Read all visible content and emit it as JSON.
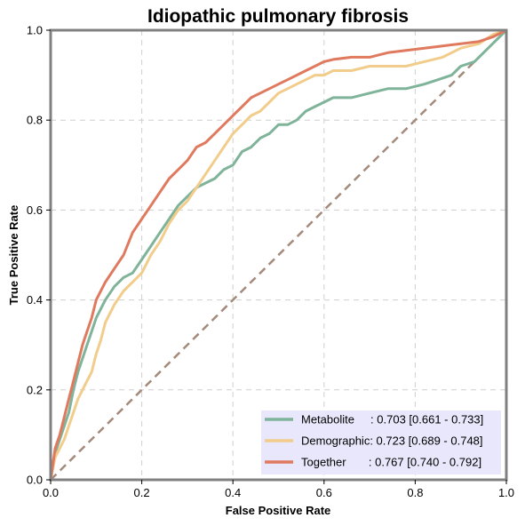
{
  "chart_data": {
    "type": "line",
    "title": "Idiopathic pulmonary fibrosis",
    "xlabel": "False Positive Rate",
    "ylabel": "True Positive Rate",
    "xlim": [
      0,
      1
    ],
    "ylim": [
      0,
      1
    ],
    "x_ticks": [
      "0.0",
      "0.2",
      "0.4",
      "0.6",
      "0.8",
      "1.0"
    ],
    "y_ticks": [
      "0.0",
      "0.2",
      "0.4",
      "0.6",
      "0.8",
      "1.0"
    ],
    "grid": true,
    "legend_position": "lower-right",
    "series": [
      {
        "name": "Metabolite",
        "legend_label": "Metabolite     : 0.703 [0.661 - 0.733]",
        "color": "#7fb39a",
        "points": [
          [
            0,
            0
          ],
          [
            0.01,
            0.06
          ],
          [
            0.02,
            0.09
          ],
          [
            0.03,
            0.12
          ],
          [
            0.04,
            0.15
          ],
          [
            0.05,
            0.2
          ],
          [
            0.06,
            0.24
          ],
          [
            0.07,
            0.27
          ],
          [
            0.08,
            0.3
          ],
          [
            0.09,
            0.33
          ],
          [
            0.1,
            0.36
          ],
          [
            0.12,
            0.4
          ],
          [
            0.14,
            0.43
          ],
          [
            0.16,
            0.45
          ],
          [
            0.18,
            0.46
          ],
          [
            0.2,
            0.49
          ],
          [
            0.22,
            0.52
          ],
          [
            0.24,
            0.55
          ],
          [
            0.26,
            0.58
          ],
          [
            0.28,
            0.61
          ],
          [
            0.3,
            0.63
          ],
          [
            0.32,
            0.65
          ],
          [
            0.34,
            0.66
          ],
          [
            0.36,
            0.67
          ],
          [
            0.38,
            0.69
          ],
          [
            0.4,
            0.7
          ],
          [
            0.42,
            0.73
          ],
          [
            0.44,
            0.74
          ],
          [
            0.46,
            0.76
          ],
          [
            0.48,
            0.77
          ],
          [
            0.5,
            0.79
          ],
          [
            0.52,
            0.79
          ],
          [
            0.54,
            0.8
          ],
          [
            0.56,
            0.82
          ],
          [
            0.58,
            0.83
          ],
          [
            0.6,
            0.84
          ],
          [
            0.62,
            0.85
          ],
          [
            0.66,
            0.85
          ],
          [
            0.7,
            0.86
          ],
          [
            0.74,
            0.87
          ],
          [
            0.78,
            0.87
          ],
          [
            0.82,
            0.88
          ],
          [
            0.85,
            0.89
          ],
          [
            0.88,
            0.9
          ],
          [
            0.9,
            0.92
          ],
          [
            0.93,
            0.93
          ],
          [
            0.96,
            0.96
          ],
          [
            1,
            1
          ]
        ]
      },
      {
        "name": "Demographic",
        "legend_label": "Demographic: 0.723 [0.689 - 0.748]",
        "color": "#f1cc8b",
        "points": [
          [
            0,
            0
          ],
          [
            0.01,
            0.05
          ],
          [
            0.02,
            0.07
          ],
          [
            0.03,
            0.09
          ],
          [
            0.04,
            0.12
          ],
          [
            0.05,
            0.15
          ],
          [
            0.06,
            0.18
          ],
          [
            0.07,
            0.2
          ],
          [
            0.08,
            0.22
          ],
          [
            0.09,
            0.24
          ],
          [
            0.1,
            0.28
          ],
          [
            0.11,
            0.31
          ],
          [
            0.12,
            0.35
          ],
          [
            0.14,
            0.39
          ],
          [
            0.16,
            0.42
          ],
          [
            0.18,
            0.44
          ],
          [
            0.2,
            0.46
          ],
          [
            0.22,
            0.5
          ],
          [
            0.24,
            0.53
          ],
          [
            0.26,
            0.57
          ],
          [
            0.28,
            0.6
          ],
          [
            0.3,
            0.62
          ],
          [
            0.32,
            0.65
          ],
          [
            0.34,
            0.68
          ],
          [
            0.36,
            0.71
          ],
          [
            0.38,
            0.74
          ],
          [
            0.4,
            0.77
          ],
          [
            0.42,
            0.79
          ],
          [
            0.44,
            0.81
          ],
          [
            0.46,
            0.82
          ],
          [
            0.48,
            0.84
          ],
          [
            0.5,
            0.86
          ],
          [
            0.52,
            0.87
          ],
          [
            0.54,
            0.88
          ],
          [
            0.56,
            0.89
          ],
          [
            0.58,
            0.9
          ],
          [
            0.6,
            0.9
          ],
          [
            0.62,
            0.91
          ],
          [
            0.66,
            0.91
          ],
          [
            0.7,
            0.92
          ],
          [
            0.74,
            0.92
          ],
          [
            0.78,
            0.92
          ],
          [
            0.82,
            0.93
          ],
          [
            0.86,
            0.94
          ],
          [
            0.9,
            0.96
          ],
          [
            0.94,
            0.97
          ],
          [
            0.97,
            0.99
          ],
          [
            1,
            1
          ]
        ]
      },
      {
        "name": "Together",
        "legend_label": "Together       : 0.767 [0.740 - 0.792]",
        "color": "#e07a5f",
        "points": [
          [
            0,
            0
          ],
          [
            0.01,
            0.07
          ],
          [
            0.02,
            0.1
          ],
          [
            0.03,
            0.14
          ],
          [
            0.04,
            0.18
          ],
          [
            0.05,
            0.22
          ],
          [
            0.06,
            0.26
          ],
          [
            0.07,
            0.3
          ],
          [
            0.08,
            0.33
          ],
          [
            0.09,
            0.36
          ],
          [
            0.1,
            0.4
          ],
          [
            0.12,
            0.44
          ],
          [
            0.14,
            0.47
          ],
          [
            0.16,
            0.5
          ],
          [
            0.18,
            0.55
          ],
          [
            0.2,
            0.58
          ],
          [
            0.22,
            0.61
          ],
          [
            0.24,
            0.64
          ],
          [
            0.26,
            0.67
          ],
          [
            0.28,
            0.69
          ],
          [
            0.3,
            0.71
          ],
          [
            0.32,
            0.74
          ],
          [
            0.34,
            0.75
          ],
          [
            0.36,
            0.77
          ],
          [
            0.38,
            0.79
          ],
          [
            0.4,
            0.81
          ],
          [
            0.42,
            0.83
          ],
          [
            0.44,
            0.85
          ],
          [
            0.46,
            0.86
          ],
          [
            0.48,
            0.87
          ],
          [
            0.5,
            0.88
          ],
          [
            0.52,
            0.89
          ],
          [
            0.54,
            0.9
          ],
          [
            0.56,
            0.91
          ],
          [
            0.58,
            0.92
          ],
          [
            0.6,
            0.93
          ],
          [
            0.62,
            0.935
          ],
          [
            0.66,
            0.94
          ],
          [
            0.7,
            0.94
          ],
          [
            0.74,
            0.95
          ],
          [
            0.78,
            0.955
          ],
          [
            0.82,
            0.96
          ],
          [
            0.86,
            0.965
          ],
          [
            0.9,
            0.97
          ],
          [
            0.94,
            0.975
          ],
          [
            0.97,
            0.985
          ],
          [
            1,
            1
          ]
        ]
      }
    ],
    "reference_line": {
      "points": [
        [
          0,
          0
        ],
        [
          1,
          1
        ]
      ],
      "color": "#a48a7b",
      "style": "dashed"
    }
  }
}
